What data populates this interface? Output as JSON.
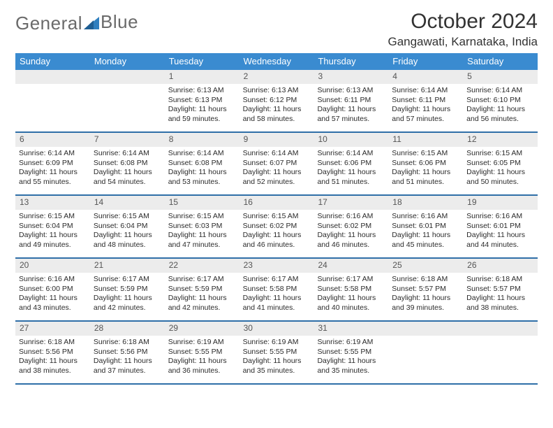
{
  "logo": {
    "word1": "General",
    "word2": "Blue",
    "accent": "#2f7fbf",
    "text_color": "#6a6a6a"
  },
  "title": "October 2024",
  "location": "Gangawati, Karnataka, India",
  "colors": {
    "header_bar": "#3a8bd0",
    "header_text": "#ffffff",
    "daynum_bg": "#ececec",
    "daynum_text": "#555555",
    "week_divider": "#2f6fa8",
    "body_text": "#2b2b2b",
    "page_bg": "#ffffff"
  },
  "dow": [
    "Sunday",
    "Monday",
    "Tuesday",
    "Wednesday",
    "Thursday",
    "Friday",
    "Saturday"
  ],
  "weeks": [
    [
      {
        "n": "",
        "sr": "",
        "ss": "",
        "dl": ""
      },
      {
        "n": "",
        "sr": "",
        "ss": "",
        "dl": ""
      },
      {
        "n": "1",
        "sr": "Sunrise: 6:13 AM",
        "ss": "Sunset: 6:13 PM",
        "dl": "Daylight: 11 hours and 59 minutes."
      },
      {
        "n": "2",
        "sr": "Sunrise: 6:13 AM",
        "ss": "Sunset: 6:12 PM",
        "dl": "Daylight: 11 hours and 58 minutes."
      },
      {
        "n": "3",
        "sr": "Sunrise: 6:13 AM",
        "ss": "Sunset: 6:11 PM",
        "dl": "Daylight: 11 hours and 57 minutes."
      },
      {
        "n": "4",
        "sr": "Sunrise: 6:14 AM",
        "ss": "Sunset: 6:11 PM",
        "dl": "Daylight: 11 hours and 57 minutes."
      },
      {
        "n": "5",
        "sr": "Sunrise: 6:14 AM",
        "ss": "Sunset: 6:10 PM",
        "dl": "Daylight: 11 hours and 56 minutes."
      }
    ],
    [
      {
        "n": "6",
        "sr": "Sunrise: 6:14 AM",
        "ss": "Sunset: 6:09 PM",
        "dl": "Daylight: 11 hours and 55 minutes."
      },
      {
        "n": "7",
        "sr": "Sunrise: 6:14 AM",
        "ss": "Sunset: 6:08 PM",
        "dl": "Daylight: 11 hours and 54 minutes."
      },
      {
        "n": "8",
        "sr": "Sunrise: 6:14 AM",
        "ss": "Sunset: 6:08 PM",
        "dl": "Daylight: 11 hours and 53 minutes."
      },
      {
        "n": "9",
        "sr": "Sunrise: 6:14 AM",
        "ss": "Sunset: 6:07 PM",
        "dl": "Daylight: 11 hours and 52 minutes."
      },
      {
        "n": "10",
        "sr": "Sunrise: 6:14 AM",
        "ss": "Sunset: 6:06 PM",
        "dl": "Daylight: 11 hours and 51 minutes."
      },
      {
        "n": "11",
        "sr": "Sunrise: 6:15 AM",
        "ss": "Sunset: 6:06 PM",
        "dl": "Daylight: 11 hours and 51 minutes."
      },
      {
        "n": "12",
        "sr": "Sunrise: 6:15 AM",
        "ss": "Sunset: 6:05 PM",
        "dl": "Daylight: 11 hours and 50 minutes."
      }
    ],
    [
      {
        "n": "13",
        "sr": "Sunrise: 6:15 AM",
        "ss": "Sunset: 6:04 PM",
        "dl": "Daylight: 11 hours and 49 minutes."
      },
      {
        "n": "14",
        "sr": "Sunrise: 6:15 AM",
        "ss": "Sunset: 6:04 PM",
        "dl": "Daylight: 11 hours and 48 minutes."
      },
      {
        "n": "15",
        "sr": "Sunrise: 6:15 AM",
        "ss": "Sunset: 6:03 PM",
        "dl": "Daylight: 11 hours and 47 minutes."
      },
      {
        "n": "16",
        "sr": "Sunrise: 6:15 AM",
        "ss": "Sunset: 6:02 PM",
        "dl": "Daylight: 11 hours and 46 minutes."
      },
      {
        "n": "17",
        "sr": "Sunrise: 6:16 AM",
        "ss": "Sunset: 6:02 PM",
        "dl": "Daylight: 11 hours and 46 minutes."
      },
      {
        "n": "18",
        "sr": "Sunrise: 6:16 AM",
        "ss": "Sunset: 6:01 PM",
        "dl": "Daylight: 11 hours and 45 minutes."
      },
      {
        "n": "19",
        "sr": "Sunrise: 6:16 AM",
        "ss": "Sunset: 6:01 PM",
        "dl": "Daylight: 11 hours and 44 minutes."
      }
    ],
    [
      {
        "n": "20",
        "sr": "Sunrise: 6:16 AM",
        "ss": "Sunset: 6:00 PM",
        "dl": "Daylight: 11 hours and 43 minutes."
      },
      {
        "n": "21",
        "sr": "Sunrise: 6:17 AM",
        "ss": "Sunset: 5:59 PM",
        "dl": "Daylight: 11 hours and 42 minutes."
      },
      {
        "n": "22",
        "sr": "Sunrise: 6:17 AM",
        "ss": "Sunset: 5:59 PM",
        "dl": "Daylight: 11 hours and 42 minutes."
      },
      {
        "n": "23",
        "sr": "Sunrise: 6:17 AM",
        "ss": "Sunset: 5:58 PM",
        "dl": "Daylight: 11 hours and 41 minutes."
      },
      {
        "n": "24",
        "sr": "Sunrise: 6:17 AM",
        "ss": "Sunset: 5:58 PM",
        "dl": "Daylight: 11 hours and 40 minutes."
      },
      {
        "n": "25",
        "sr": "Sunrise: 6:18 AM",
        "ss": "Sunset: 5:57 PM",
        "dl": "Daylight: 11 hours and 39 minutes."
      },
      {
        "n": "26",
        "sr": "Sunrise: 6:18 AM",
        "ss": "Sunset: 5:57 PM",
        "dl": "Daylight: 11 hours and 38 minutes."
      }
    ],
    [
      {
        "n": "27",
        "sr": "Sunrise: 6:18 AM",
        "ss": "Sunset: 5:56 PM",
        "dl": "Daylight: 11 hours and 38 minutes."
      },
      {
        "n": "28",
        "sr": "Sunrise: 6:18 AM",
        "ss": "Sunset: 5:56 PM",
        "dl": "Daylight: 11 hours and 37 minutes."
      },
      {
        "n": "29",
        "sr": "Sunrise: 6:19 AM",
        "ss": "Sunset: 5:55 PM",
        "dl": "Daylight: 11 hours and 36 minutes."
      },
      {
        "n": "30",
        "sr": "Sunrise: 6:19 AM",
        "ss": "Sunset: 5:55 PM",
        "dl": "Daylight: 11 hours and 35 minutes."
      },
      {
        "n": "31",
        "sr": "Sunrise: 6:19 AM",
        "ss": "Sunset: 5:55 PM",
        "dl": "Daylight: 11 hours and 35 minutes."
      },
      {
        "n": "",
        "sr": "",
        "ss": "",
        "dl": ""
      },
      {
        "n": "",
        "sr": "",
        "ss": "",
        "dl": ""
      }
    ]
  ]
}
